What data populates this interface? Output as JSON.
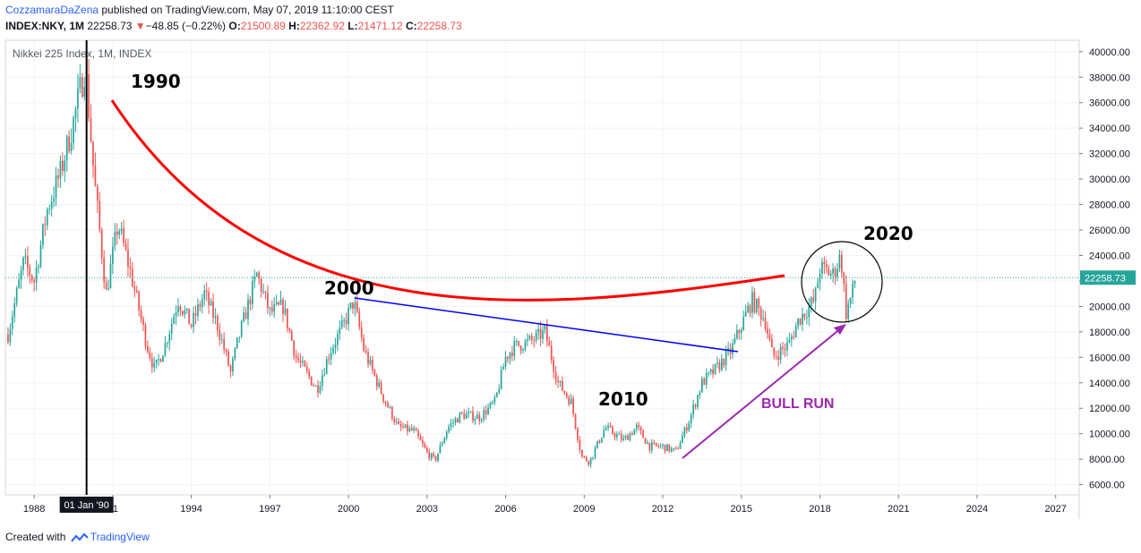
{
  "header": {
    "author": "CozzamaraDaZena",
    "published_text": " published on TradingView.com, May 07, 2019 11:10:00 CEST",
    "symbol": "INDEX:NKY, 1M",
    "last": "22258.73",
    "change_arrow": "▼",
    "change": "−48.85 (−0.22%)",
    "o_label": "O:",
    "o_value": "21500.89",
    "h_label": "H:",
    "h_value": "22362.92",
    "l_label": "L:",
    "l_value": "21471.12",
    "c_label": "C:",
    "c_value": "22258.73"
  },
  "footer": {
    "created_with": "Created with",
    "brand": "TradingView"
  },
  "chart_data": {
    "type": "candlestick",
    "title": "Nikkei 225 Index, 1M, INDEX",
    "x_range": [
      1986.9,
      2027.9
    ],
    "y_range": [
      5200,
      40900
    ],
    "x_ticks": [
      {
        "year": 1988,
        "label": "1988"
      },
      {
        "year": 1991,
        "label": "91"
      },
      {
        "year": 1994,
        "label": "1994"
      },
      {
        "year": 1997,
        "label": "1997"
      },
      {
        "year": 2000,
        "label": "2000"
      },
      {
        "year": 2003,
        "label": "2003"
      },
      {
        "year": 2006,
        "label": "2006"
      },
      {
        "year": 2009,
        "label": "2009"
      },
      {
        "year": 2012,
        "label": "2012"
      },
      {
        "year": 2015,
        "label": "2015"
      },
      {
        "year": 2018,
        "label": "2018"
      },
      {
        "year": 2021,
        "label": "2021"
      },
      {
        "year": 2024,
        "label": "2024"
      },
      {
        "year": 2027,
        "label": "2027"
      }
    ],
    "y_ticks": [
      "6000.00",
      "8000.00",
      "10000.00",
      "12000.00",
      "14000.00",
      "16000.00",
      "18000.00",
      "20000.00",
      "22000.00",
      "24000.00",
      "26000.00",
      "28000.00",
      "30000.00",
      "32000.00",
      "34000.00",
      "36000.00",
      "38000.00",
      "40000.00"
    ],
    "price_line": {
      "value": 22258.73,
      "label": "22258.73",
      "color": "#26a69a"
    },
    "crosshair": {
      "x": 1990.0,
      "label": "01 Jan '90"
    },
    "colors": {
      "up": "#26a69a",
      "down": "#ef5350",
      "curve": "#ff0000",
      "trendline": "#0000ff",
      "arrow": "#9c27b0",
      "circle": "#000000"
    },
    "path": [
      [
        1987.0,
        17800
      ],
      [
        1987.6,
        23500
      ],
      [
        1988.0,
        22000
      ],
      [
        1988.5,
        27600
      ],
      [
        1989.0,
        30500
      ],
      [
        1989.5,
        34500
      ],
      [
        1989.95,
        38900
      ],
      [
        1990.3,
        29800
      ],
      [
        1990.75,
        21000
      ],
      [
        1991.2,
        26500
      ],
      [
        1991.7,
        22500
      ],
      [
        1992.3,
        17000
      ],
      [
        1992.6,
        15000
      ],
      [
        1993.0,
        17000
      ],
      [
        1993.5,
        20500
      ],
      [
        1994.0,
        18500
      ],
      [
        1994.5,
        21000
      ],
      [
        1995.0,
        18500
      ],
      [
        1995.5,
        14800
      ],
      [
        1995.8,
        17500
      ],
      [
        1996.5,
        22500
      ],
      [
        1997.0,
        19500
      ],
      [
        1997.5,
        20000
      ],
      [
        1998.0,
        16000
      ],
      [
        1998.8,
        13500
      ],
      [
        1999.3,
        16500
      ],
      [
        1999.8,
        18500
      ],
      [
        2000.2,
        20400
      ],
      [
        2000.6,
        16500
      ],
      [
        2001.3,
        13000
      ],
      [
        2001.9,
        10500
      ],
      [
        2002.5,
        10200
      ],
      [
        2003.0,
        8500
      ],
      [
        2003.3,
        7900
      ],
      [
        2003.8,
        10500
      ],
      [
        2004.3,
        11500
      ],
      [
        2005.0,
        11300
      ],
      [
        2005.6,
        12500
      ],
      [
        2006.0,
        16000
      ],
      [
        2006.3,
        16800
      ],
      [
        2007.0,
        17300
      ],
      [
        2007.5,
        18000
      ],
      [
        2008.0,
        14000
      ],
      [
        2008.5,
        12500
      ],
      [
        2008.9,
        8200
      ],
      [
        2009.2,
        7800
      ],
      [
        2009.8,
        10500
      ],
      [
        2010.5,
        9500
      ],
      [
        2011.0,
        10500
      ],
      [
        2011.5,
        9000
      ],
      [
        2012.0,
        9000
      ],
      [
        2012.5,
        8600
      ],
      [
        2013.0,
        11000
      ],
      [
        2013.5,
        14000
      ],
      [
        2014.0,
        15000
      ],
      [
        2014.6,
        16500
      ],
      [
        2015.0,
        18500
      ],
      [
        2015.4,
        20500
      ],
      [
        2015.9,
        19000
      ],
      [
        2016.2,
        16000
      ],
      [
        2016.8,
        17000
      ],
      [
        2017.2,
        19000
      ],
      [
        2017.8,
        20500
      ],
      [
        2018.0,
        23000
      ],
      [
        2018.5,
        22500
      ],
      [
        2018.8,
        24000
      ],
      [
        2019.0,
        19500
      ],
      [
        2019.3,
        21500
      ],
      [
        2019.35,
        22258.73
      ]
    ]
  },
  "annotations": {
    "label_1990": "1990",
    "label_2000": "2000",
    "label_2010": "2010",
    "label_2020": "2020",
    "label_bull_run": "BULL RUN"
  }
}
